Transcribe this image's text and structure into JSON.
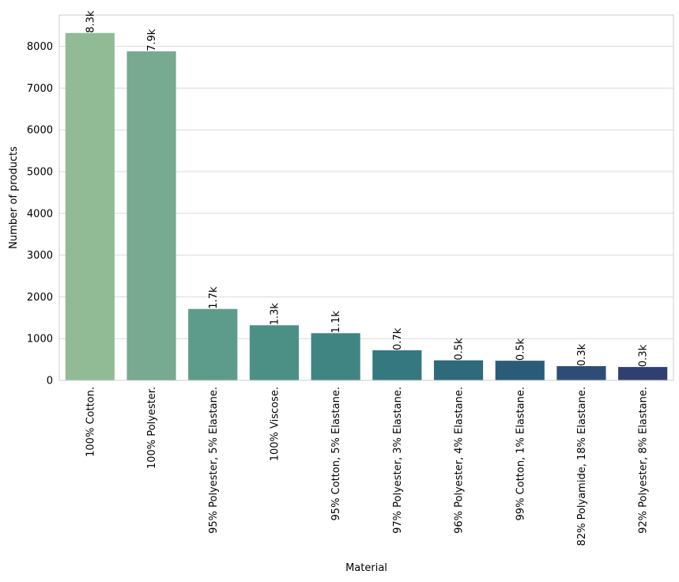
{
  "chart_data": {
    "type": "bar",
    "xlabel": "Material",
    "ylabel": "Number of products",
    "ylim": [
      0,
      8750
    ],
    "yticks": [
      0,
      1000,
      2000,
      3000,
      4000,
      5000,
      6000,
      7000,
      8000
    ],
    "grid": "horizontal",
    "categories": [
      "100% Cotton.",
      "100% Polyester.",
      "95% Polyester, 5% Elastane.",
      "100% Viscose.",
      "95% Cotton, 5% Elastane.",
      "97% Polyester, 3% Elastane.",
      "96% Polyester, 4% Elastane.",
      "99% Cotton, 1% Elastane.",
      "82% Polyamide, 18% Elastane.",
      "92% Polyester, 8% Elastane."
    ],
    "values": [
      8320,
      7880,
      1710,
      1320,
      1130,
      720,
      480,
      470,
      340,
      320
    ],
    "data_labels": [
      "8.3k",
      "7.9k",
      "1.7k",
      "1.3k",
      "1.1k",
      "0.7k",
      "0.5k",
      "0.5k",
      "0.3k",
      "0.3k"
    ],
    "colors": [
      "#90bb95",
      "#77aa90",
      "#5d9c8a",
      "#4c9085",
      "#418582",
      "#35787f",
      "#2f6a7b",
      "#2a5c78",
      "#2d4d76",
      "#2f3f70"
    ]
  }
}
